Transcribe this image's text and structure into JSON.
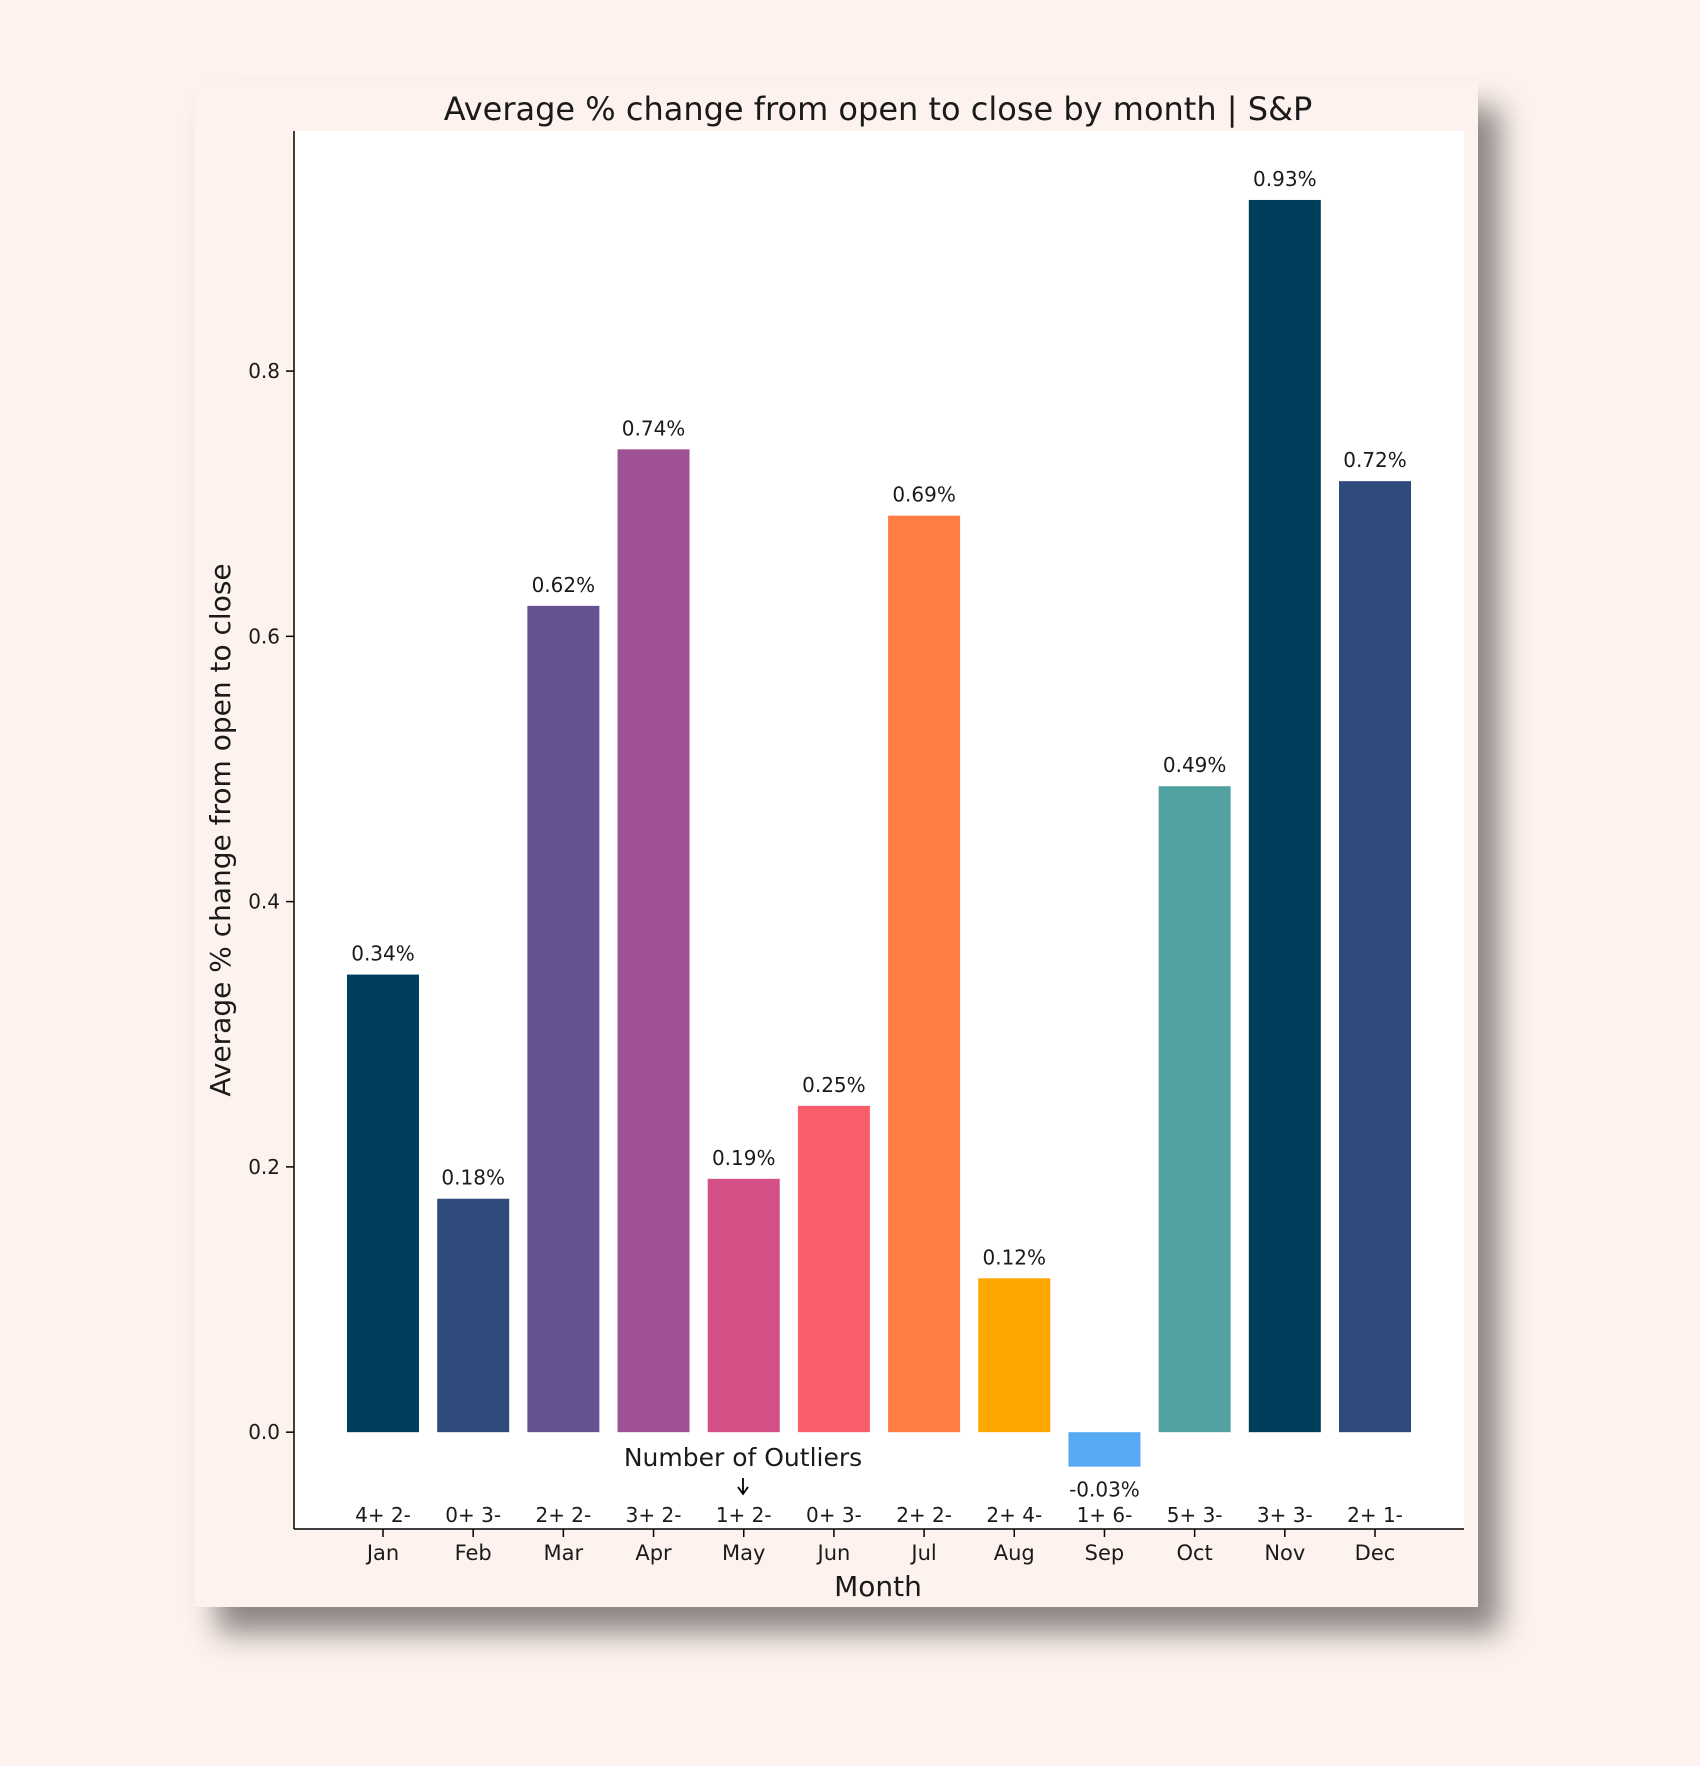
{
  "chart_data": {
    "type": "bar",
    "title": "Average % change from open to close by month | S&P",
    "xlabel": "Month",
    "ylabel": "Average % change from open to close",
    "categories": [
      "Jan",
      "Feb",
      "Mar",
      "Apr",
      "May",
      "Jun",
      "Jul",
      "Aug",
      "Sep",
      "Oct",
      "Nov",
      "Dec"
    ],
    "values": [
      0.345,
      0.176,
      0.623,
      0.741,
      0.191,
      0.246,
      0.691,
      0.116,
      -0.026,
      0.487,
      0.929,
      0.717
    ],
    "value_labels": [
      "0.34%",
      "0.18%",
      "0.62%",
      "0.74%",
      "0.19%",
      "0.25%",
      "0.69%",
      "0.12%",
      "-0.03%",
      "0.49%",
      "0.93%",
      "0.72%"
    ],
    "outlier_labels": [
      "4+ 2-",
      "0+ 3-",
      "2+ 2-",
      "3+ 2-",
      "1+ 2-",
      "0+ 3-",
      "2+ 2-",
      "2+ 4-",
      "1+ 6-",
      "5+ 3-",
      "3+ 3-",
      "2+ 1-"
    ],
    "outlier_annotation": "Number of Outliers",
    "colors": [
      "#003f5c",
      "#2f4b7c",
      "#665191",
      "#a05195",
      "#d45087",
      "#f95d6a",
      "#ff7c43",
      "#ffa600",
      "#58a9f3",
      "#52a1a1",
      "#003f5c",
      "#2f4b7c"
    ],
    "yticks": [
      0.0,
      0.2,
      0.4,
      0.6,
      0.8
    ],
    "ytick_labels": [
      "0.0",
      "0.2",
      "0.4",
      "0.6",
      "0.8"
    ],
    "ylim": [
      -0.073,
      0.981
    ],
    "grid": false,
    "legend": "none"
  }
}
